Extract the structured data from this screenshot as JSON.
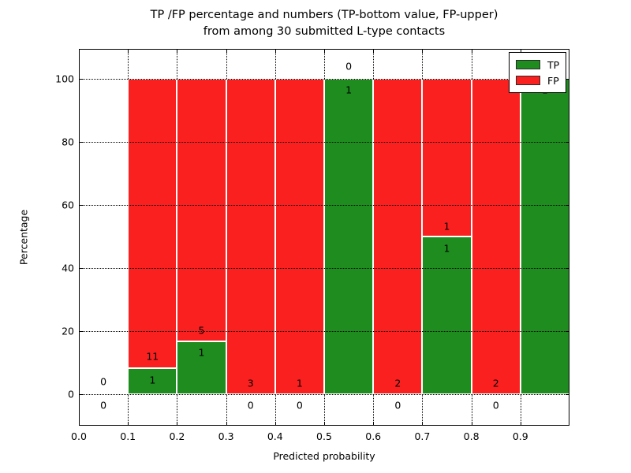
{
  "figure": {
    "title_line1": "TP /FP percentage and numbers (TP-bottom value, FP-upper)",
    "title_line2": "from among 30 submitted L-type contacts"
  },
  "chart_data": {
    "type": "bar",
    "stacked": true,
    "title": "TP /FP percentage and numbers (TP-bottom value, FP-upper)\nfrom among 30 submitted L-type contacts",
    "xlabel": "Predicted probability",
    "ylabel": "Percentage",
    "xlim": [
      0.0,
      1.0
    ],
    "ylim": [
      -10,
      109.5
    ],
    "grid": "dotted",
    "legend_position": "upper right",
    "bin_width": 0.1,
    "categories": [
      "0.0-0.1",
      "0.1-0.2",
      "0.2-0.3",
      "0.3-0.4",
      "0.4-0.5",
      "0.5-0.6",
      "0.6-0.7",
      "0.7-0.8",
      "0.8-0.9",
      "0.9-1.0"
    ],
    "xticks": [
      "0.0",
      "0.1",
      "0.2",
      "0.3",
      "0.4",
      "0.5",
      "0.6",
      "0.7",
      "0.8",
      "0.9"
    ],
    "xtick_values": [
      0.0,
      0.1,
      0.2,
      0.3,
      0.4,
      0.5,
      0.6,
      0.7,
      0.8,
      0.9
    ],
    "yticks": [
      "0",
      "20",
      "40",
      "60",
      "80",
      "100"
    ],
    "ytick_values": [
      0,
      20,
      40,
      60,
      80,
      100
    ],
    "series": [
      {
        "name": "TP",
        "color": "#1e8c1e",
        "counts": [
          0,
          1,
          1,
          0,
          0,
          1,
          0,
          1,
          0,
          1
        ],
        "percent": [
          0,
          8.33,
          16.67,
          0,
          0,
          100,
          0,
          50,
          0,
          100
        ]
      },
      {
        "name": "FP",
        "color": "#fb2020",
        "counts": [
          0,
          11,
          5,
          3,
          1,
          0,
          2,
          1,
          2,
          0
        ],
        "percent": [
          0,
          91.67,
          83.33,
          100,
          100,
          0,
          100,
          50,
          100,
          0
        ]
      }
    ],
    "legend": {
      "entries": [
        {
          "label": "TP",
          "color": "#1e8c1e"
        },
        {
          "label": "FP",
          "color": "#fb2020"
        }
      ]
    },
    "annotations": [
      {
        "x": 0.05,
        "y": 4.0,
        "text": "0"
      },
      {
        "x": 0.05,
        "y": -3.5,
        "text": "0"
      },
      {
        "x": 0.15,
        "y": 12.0,
        "text": "11"
      },
      {
        "x": 0.15,
        "y": 4.5,
        "text": "1"
      },
      {
        "x": 0.25,
        "y": 20.3,
        "text": "5"
      },
      {
        "x": 0.25,
        "y": 13.3,
        "text": "1"
      },
      {
        "x": 0.35,
        "y": 3.5,
        "text": "3"
      },
      {
        "x": 0.35,
        "y": -3.5,
        "text": "0"
      },
      {
        "x": 0.45,
        "y": 3.5,
        "text": "1"
      },
      {
        "x": 0.45,
        "y": -3.5,
        "text": "0"
      },
      {
        "x": 0.55,
        "y": 104.0,
        "text": "0"
      },
      {
        "x": 0.55,
        "y": 96.5,
        "text": "1"
      },
      {
        "x": 0.65,
        "y": 3.5,
        "text": "2"
      },
      {
        "x": 0.65,
        "y": -3.5,
        "text": "0"
      },
      {
        "x": 0.75,
        "y": 53.3,
        "text": "1"
      },
      {
        "x": 0.75,
        "y": 46.3,
        "text": "1"
      },
      {
        "x": 0.85,
        "y": 3.5,
        "text": "2"
      },
      {
        "x": 0.85,
        "y": -3.5,
        "text": "0"
      },
      {
        "x": 0.95,
        "y": 96.5,
        "text": "1"
      }
    ]
  }
}
